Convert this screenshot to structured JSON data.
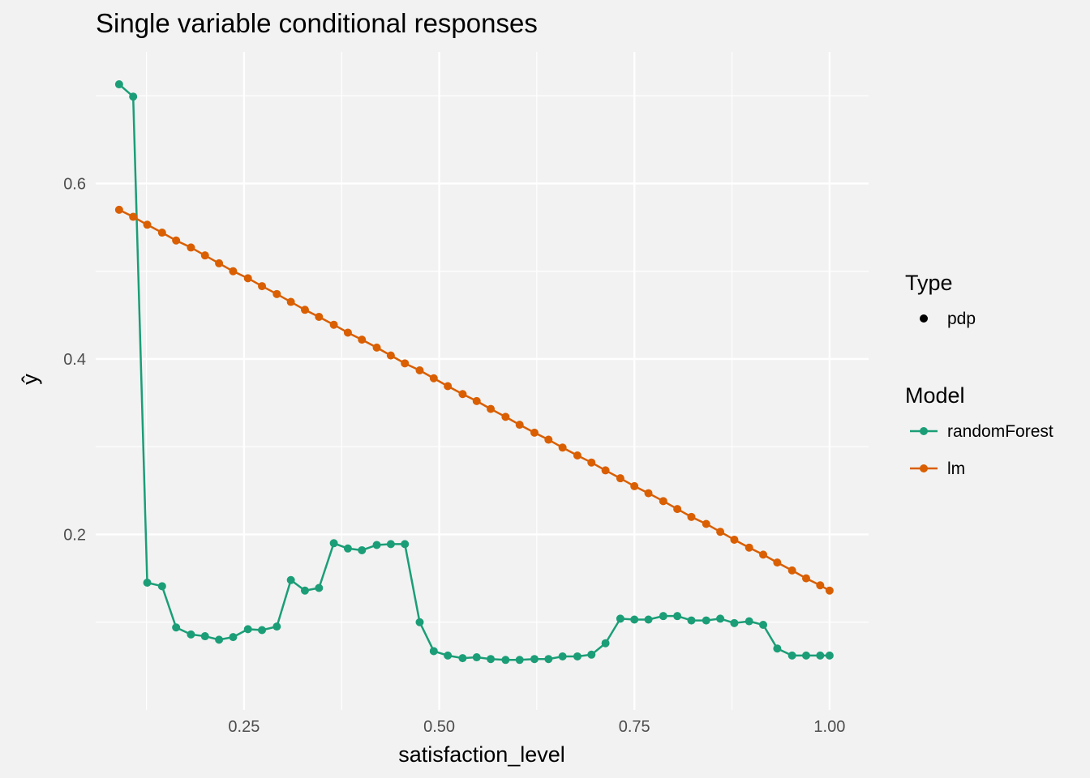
{
  "chart_data": {
    "type": "line",
    "title": "Single variable conditional responses",
    "xlabel": "satisfaction_level",
    "ylabel": "ŷ",
    "xlim": [
      0.06,
      1.05
    ],
    "ylim": [
      0.0,
      0.75
    ],
    "x_ticks": [
      0.25,
      0.5,
      0.75,
      1.0
    ],
    "x_tick_labels": [
      "0.25",
      "0.50",
      "0.75",
      "1.00"
    ],
    "y_ticks": [
      0.2,
      0.4,
      0.6
    ],
    "y_tick_labels": [
      "0.2",
      "0.4",
      "0.6"
    ],
    "grid": true,
    "x": [
      0.09,
      0.108,
      0.126,
      0.145,
      0.163,
      0.182,
      0.2,
      0.218,
      0.236,
      0.255,
      0.273,
      0.292,
      0.31,
      0.328,
      0.346,
      0.365,
      0.383,
      0.401,
      0.42,
      0.438,
      0.456,
      0.475,
      0.493,
      0.511,
      0.53,
      0.548,
      0.566,
      0.585,
      0.603,
      0.622,
      0.64,
      0.658,
      0.677,
      0.695,
      0.713,
      0.732,
      0.75,
      0.768,
      0.787,
      0.805,
      0.823,
      0.842,
      0.86,
      0.878,
      0.897,
      0.915,
      0.933,
      0.952,
      0.97,
      0.988,
      1.0
    ],
    "series": [
      {
        "name": "randomForest",
        "color": "#1b9e77",
        "values": [
          0.713,
          0.699,
          0.145,
          0.141,
          0.094,
          0.086,
          0.084,
          0.08,
          0.083,
          0.092,
          0.091,
          0.095,
          0.148,
          0.136,
          0.139,
          0.19,
          0.184,
          0.182,
          0.188,
          0.189,
          0.189,
          0.1,
          0.067,
          0.062,
          0.059,
          0.06,
          0.058,
          0.057,
          0.057,
          0.058,
          0.058,
          0.061,
          0.061,
          0.063,
          0.076,
          0.104,
          0.103,
          0.103,
          0.107,
          0.107,
          0.102,
          0.102,
          0.104,
          0.099,
          0.101,
          0.097,
          0.07,
          0.062,
          0.062,
          0.062,
          0.062
        ]
      },
      {
        "name": "lm",
        "color": "#d95f02",
        "values": [
          0.57,
          0.562,
          0.553,
          0.544,
          0.535,
          0.527,
          0.518,
          0.509,
          0.5,
          0.492,
          0.483,
          0.474,
          0.465,
          0.456,
          0.448,
          0.439,
          0.43,
          0.422,
          0.413,
          0.404,
          0.395,
          0.387,
          0.378,
          0.369,
          0.36,
          0.352,
          0.343,
          0.334,
          0.325,
          0.316,
          0.308,
          0.299,
          0.29,
          0.282,
          0.273,
          0.264,
          0.255,
          0.247,
          0.238,
          0.229,
          0.22,
          0.212,
          0.203,
          0.194,
          0.185,
          0.177,
          0.168,
          0.159,
          0.15,
          0.142,
          0.136
        ]
      }
    ],
    "legend": {
      "placement": "right",
      "type_title": "Type",
      "type_label": "pdp",
      "model_title": "Model",
      "model_labels": [
        "randomForest",
        "lm"
      ]
    }
  }
}
